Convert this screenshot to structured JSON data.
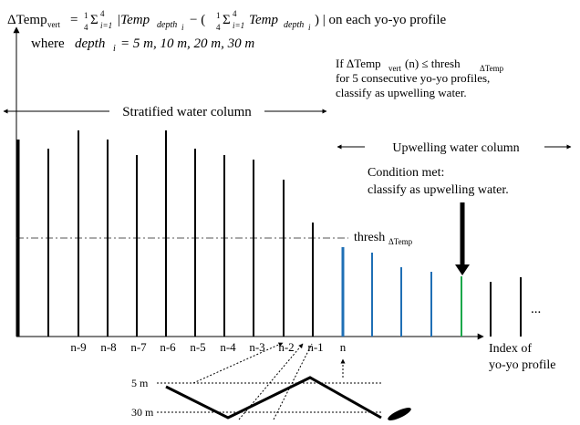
{
  "formula": {
    "lhs": "ΔTemp",
    "lhs_sub": "vert",
    "eq": "=",
    "frac_num": "1",
    "frac_den": "4",
    "sum": "Σ",
    "sum_top": "4",
    "sum_bottom": "i=1",
    "abs_open": "|Temp",
    "depth": "depth",
    "depth_sub": "i",
    "minus": "− (",
    "frac2_num": "1",
    "frac2_den": "4",
    "sum2": "Σ",
    "sum2_top": "4",
    "sum2_bottom": "i=1",
    "temp2": "Temp",
    "depth2": "depth",
    "depth2_sub": "i",
    "tail": ") | on each yo-yo profile"
  },
  "where": {
    "word": "where",
    "depth": "depth",
    "depth_sub": "i",
    "values": "= 5 m, 10 m, 20 m, 30 m"
  },
  "rule": {
    "line1_a": "If ΔTemp",
    "line1_sub": "vert",
    "line1_b": "(n) ≤ thresh",
    "line1_sub2": "ΔTemp",
    "line2": "for 5 consecutive yo-yo profiles,",
    "line3": "classify as upwelling water."
  },
  "regions": {
    "stratified": "Stratified water column",
    "upwelling": "Upwelling water column"
  },
  "condition": {
    "line1": "Condition met:",
    "line2": "classify as upwelling water."
  },
  "threshold": {
    "label": "thresh",
    "sub": "ΔTemp"
  },
  "ellipsis": "...",
  "x_labels": [
    "n-9",
    "n-8",
    "n-7",
    "n-6",
    "n-5",
    "n-4",
    "n-3",
    "n-2",
    "n-1",
    "n"
  ],
  "x_axis": {
    "line1": "Index of",
    "line2": "yo-yo profile"
  },
  "depths": {
    "top": "5 m",
    "bottom": "30 m"
  }
}
